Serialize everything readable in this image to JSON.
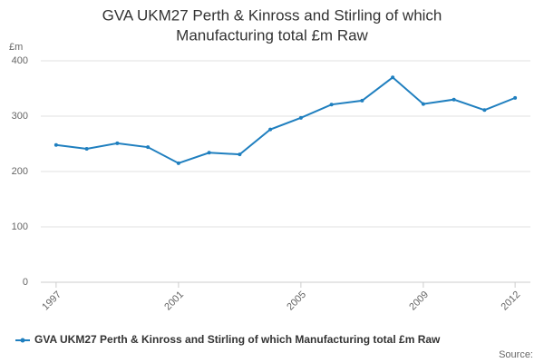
{
  "chart_data": {
    "type": "line",
    "title": [
      "GVA UKM27 Perth & Kinross and Stirling of which",
      "Manufacturing total £m Raw"
    ],
    "ylabel": "£m",
    "x": [
      1997,
      1998,
      1999,
      2000,
      2001,
      2002,
      2003,
      2004,
      2005,
      2006,
      2007,
      2008,
      2009,
      2010,
      2011,
      2012
    ],
    "series": [
      {
        "name": "GVA UKM27 Perth & Kinross and Stirling of which Manufacturing total £m Raw",
        "color": "#1f7fbf",
        "values": [
          248,
          241,
          251,
          244,
          215,
          234,
          231,
          276,
          297,
          321,
          328,
          370,
          322,
          330,
          311,
          333
        ]
      }
    ],
    "xlim": [
      1996.5,
      2012.5
    ],
    "xticks": [
      1997,
      2001,
      2005,
      2009,
      2012
    ],
    "ylim": [
      0,
      400
    ],
    "yticks": [
      0,
      100,
      200,
      300,
      400
    ],
    "grid": true,
    "legend": "bottom",
    "source": "Source:"
  }
}
